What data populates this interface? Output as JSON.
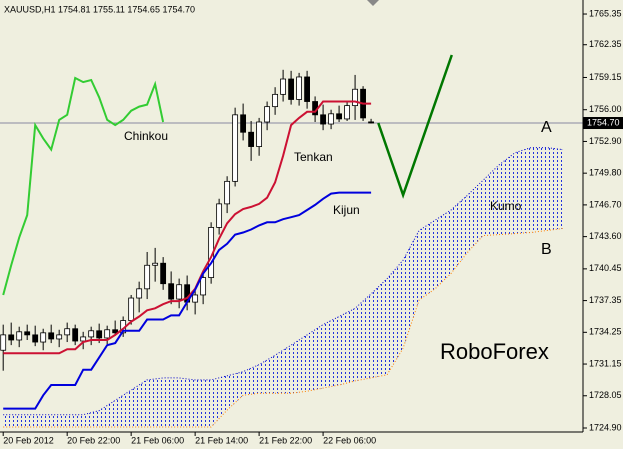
{
  "chart_data": {
    "type": "candlestick",
    "title": "XAUUSD,H1  1754.81 1755.11 1754.65 1754.70",
    "background": "#efefdf",
    "up_color": "#ffffff",
    "down_color": "#000000",
    "x": [
      0,
      1,
      2,
      3,
      4,
      5,
      6,
      7,
      8,
      9,
      10,
      11,
      12,
      13,
      14,
      15,
      16,
      17,
      18,
      19,
      20,
      21,
      22,
      23,
      24,
      25,
      26,
      27,
      28,
      29,
      30,
      31,
      32,
      33,
      34,
      35,
      36,
      37,
      38,
      39,
      40,
      41,
      42,
      43,
      44,
      45,
      46
    ],
    "open": [
      1732.5,
      1734.0,
      1733.5,
      1734.3,
      1734.0,
      1733.3,
      1734.2,
      1733.6,
      1734.0,
      1734.6,
      1733.4,
      1733.8,
      1734.4,
      1733.7,
      1734.5,
      1734.2,
      1735.4,
      1737.6,
      1738.5,
      1740.8,
      1741.0,
      1739.0,
      1737.5,
      1738.9,
      1737.2,
      1737.9,
      1739.6,
      1744.5,
      1746.8,
      1749.0,
      1755.5,
      1753.8,
      1752.4,
      1754.8,
      1756.3,
      1757.5,
      1759.0,
      1757.0,
      1759.2,
      1756.8,
      1755.5,
      1754.6,
      1755.6,
      1755.1,
      1756.4,
      1758.0,
      1754.81
    ],
    "high": [
      1735.0,
      1735.2,
      1734.8,
      1735.0,
      1734.9,
      1734.6,
      1735.0,
      1734.5,
      1735.2,
      1735.0,
      1734.3,
      1734.8,
      1735.1,
      1734.9,
      1735.4,
      1735.8,
      1737.9,
      1739.2,
      1742.1,
      1742.5,
      1741.6,
      1740.2,
      1739.5,
      1739.8,
      1738.4,
      1740.0,
      1745.0,
      1747.3,
      1749.5,
      1756.2,
      1756.6,
      1754.9,
      1755.2,
      1756.8,
      1758.2,
      1759.9,
      1759.8,
      1759.6,
      1759.8,
      1757.3,
      1756.5,
      1756.0,
      1756.4,
      1756.9,
      1759.4,
      1758.3,
      1755.11
    ],
    "low": [
      1730.5,
      1733.0,
      1732.8,
      1733.5,
      1732.9,
      1732.5,
      1733.2,
      1732.8,
      1733.3,
      1733.0,
      1732.6,
      1733.0,
      1733.2,
      1733.1,
      1733.9,
      1733.8,
      1735.0,
      1736.2,
      1737.5,
      1739.2,
      1738.4,
      1737.0,
      1736.6,
      1736.4,
      1736.0,
      1737.0,
      1739.0,
      1743.8,
      1745.9,
      1748.5,
      1753.0,
      1751.0,
      1751.5,
      1754.0,
      1755.5,
      1756.8,
      1756.5,
      1756.4,
      1756.1,
      1754.8,
      1754.0,
      1754.1,
      1754.8,
      1754.9,
      1755.0,
      1754.9,
      1754.65
    ],
    "close": [
      1734.0,
      1733.5,
      1734.3,
      1734.0,
      1733.3,
      1734.2,
      1733.6,
      1734.0,
      1734.6,
      1733.4,
      1733.8,
      1734.4,
      1733.7,
      1734.5,
      1734.2,
      1735.4,
      1737.6,
      1738.5,
      1740.8,
      1741.0,
      1739.0,
      1737.5,
      1738.9,
      1737.2,
      1737.9,
      1739.6,
      1744.5,
      1746.8,
      1749.0,
      1755.5,
      1753.8,
      1752.4,
      1754.8,
      1756.3,
      1757.5,
      1759.0,
      1757.0,
      1759.2,
      1756.8,
      1755.5,
      1754.6,
      1755.6,
      1755.1,
      1756.4,
      1758.0,
      1755.2,
      1754.7
    ],
    "xlim": [
      -0.4,
      72.5
    ],
    "ylim": [
      1724.51,
      1766.72
    ],
    "yticks": [
      1765.35,
      1762.35,
      1759.15,
      {
        "value": 1756.0,
        "label": "1756.00"
      },
      {
        "value": 1752.9,
        "label": "1752.90"
      },
      {
        "value": 1749.8,
        "label": "1749.80"
      },
      {
        "value": 1746.7,
        "label": "1746.70"
      },
      {
        "value": 1743.6,
        "label": "1743.60"
      },
      1740.45,
      1737.35,
      1734.25,
      1731.15,
      1728.05,
      {
        "value": 1724.9,
        "label": "1724.90"
      }
    ],
    "xticks": [
      {
        "value": 0,
        "label": "20 Feb 2012"
      },
      {
        "value": 8,
        "label": "20 Feb 22:00"
      },
      {
        "value": 16,
        "label": "21 Feb 06:00"
      },
      {
        "value": 24,
        "label": "21 Feb 14:00"
      },
      {
        "value": 32,
        "label": "21 Feb 22:00"
      },
      {
        "value": 40,
        "label": "22 Feb 06:00"
      }
    ],
    "last_price": {
      "value": 1754.7,
      "label": "1754.70"
    },
    "lines": [
      {
        "name": "Tenkan",
        "color": "#cc1133",
        "values": [
          1732.2,
          1732.2,
          1732.2,
          1732.2,
          1732.2,
          1732.2,
          1732.2,
          1732.2,
          1732.6,
          1732.6,
          1733.3,
          1733.5,
          1733.5,
          1733.5,
          1734.0,
          1734.6,
          1735.3,
          1735.8,
          1736.4,
          1736.6,
          1737.0,
          1737.3,
          1737.3,
          1737.6,
          1738.5,
          1740.2,
          1741.6,
          1743.4,
          1744.9,
          1745.8,
          1746.3,
          1746.5,
          1746.8,
          1747.4,
          1748.9,
          1751.5,
          1754.5,
          1755.2,
          1755.8,
          1755.8,
          1756.8,
          1756.8,
          1756.8,
          1756.8,
          1756.8,
          1756.6,
          1756.6
        ]
      },
      {
        "name": "Kijun",
        "color": "#0000dd",
        "values": [
          1726.8,
          1726.8,
          1726.8,
          1726.8,
          1726.8,
          1728.1,
          1729.1,
          1729.1,
          1729.1,
          1729.1,
          1730.6,
          1730.6,
          1731.8,
          1733.0,
          1733.2,
          1734.4,
          1734.4,
          1734.4,
          1735.5,
          1735.5,
          1735.5,
          1735.9,
          1735.9,
          1737.2,
          1738.4,
          1740.0,
          1741.0,
          1742.3,
          1742.9,
          1743.8,
          1744.0,
          1744.3,
          1744.7,
          1745.0,
          1745.0,
          1745.3,
          1745.5,
          1745.7,
          1746.2,
          1746.7,
          1747.3,
          1747.8,
          1747.9,
          1747.9,
          1747.9,
          1747.9,
          1747.9
        ]
      }
    ],
    "chinkou": {
      "name": "Chinkou",
      "color": "#33cc33",
      "x": [
        0,
        1,
        2,
        3,
        4,
        5,
        6,
        7,
        8,
        9,
        10,
        11,
        12,
        13,
        14,
        15,
        16,
        17,
        18,
        19,
        20
      ],
      "values": [
        1737.9,
        1740.8,
        1743.5,
        1745.7,
        1754.5,
        1753.2,
        1752.1,
        1755.0,
        1755.5,
        1759.1,
        1758.7,
        1758.9,
        1757.2,
        1755.0,
        1754.5,
        1755.0,
        1755.9,
        1756.3,
        1756.5,
        1758.5,
        1754.8
      ]
    },
    "kumo": {
      "name": "Kumo",
      "color": "#0000cc",
      "x": [
        0,
        2,
        4,
        6,
        8,
        10,
        12,
        14,
        16,
        18,
        20,
        22,
        24,
        26,
        28,
        30,
        32,
        34,
        36,
        38,
        40,
        42,
        44,
        46,
        48,
        50,
        52,
        54,
        56,
        58,
        60,
        62,
        64,
        66,
        68,
        70
      ],
      "span_a": {
        "name": "A",
        "color": "#0000cc",
        "values": [
          1726.2,
          1726.2,
          1726.2,
          1726.2,
          1726.2,
          1726.2,
          1726.6,
          1727.6,
          1728.6,
          1729.6,
          1729.8,
          1729.8,
          1729.6,
          1729.6,
          1730.0,
          1730.4,
          1731.1,
          1732.0,
          1733.0,
          1734.0,
          1735.0,
          1735.8,
          1736.6,
          1738.0,
          1739.5,
          1741.3,
          1744.2,
          1745.2,
          1746.2,
          1747.6,
          1749.1,
          1750.6,
          1751.8,
          1752.3,
          1752.3,
          1752.1
        ]
      },
      "span_b": {
        "name": "B",
        "color": "#ff8000",
        "values": [
          1725.0,
          1725.0,
          1725.0,
          1725.0,
          1725.0,
          1725.0,
          1725.0,
          1725.0,
          1725.0,
          1725.0,
          1725.0,
          1725.0,
          1725.0,
          1725.0,
          1726.65,
          1728.1,
          1728.3,
          1728.3,
          1728.3,
          1728.5,
          1728.8,
          1729.1,
          1729.5,
          1729.8,
          1730.1,
          1732.7,
          1737.4,
          1738.5,
          1740.0,
          1742.0,
          1743.7,
          1743.8,
          1743.9,
          1744.0,
          1744.2,
          1744.4
        ]
      }
    },
    "forecast": {
      "color": "#007700",
      "x": [
        46.9,
        50,
        56.1
      ],
      "values": [
        1754.7,
        1747.67,
        1761.35
      ]
    },
    "watermark": "RoboForex"
  }
}
